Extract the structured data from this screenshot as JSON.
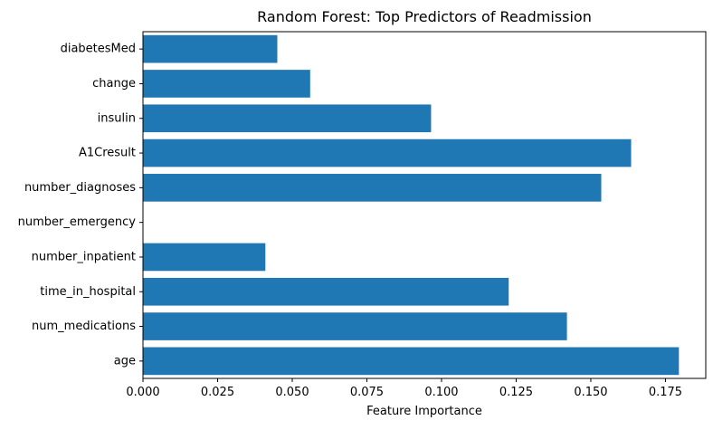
{
  "chart_data": {
    "type": "bar",
    "orientation": "horizontal",
    "title": "Random Forest: Top Predictors of Readmission",
    "xlabel": "Feature Importance",
    "ylabel": "",
    "categories": [
      "age",
      "num_medications",
      "time_in_hospital",
      "number_inpatient",
      "number_emergency",
      "number_diagnoses",
      "A1Cresult",
      "insulin",
      "change",
      "diabetesMed"
    ],
    "values": [
      0.1795,
      0.142,
      0.1225,
      0.041,
      0.0,
      0.1535,
      0.1635,
      0.0965,
      0.056,
      0.045
    ],
    "xlim": [
      0,
      0.1885
    ],
    "xticks": [
      0.0,
      0.025,
      0.05,
      0.075,
      0.1,
      0.125,
      0.15,
      0.175
    ],
    "xtick_labels": [
      "0.000",
      "0.025",
      "0.050",
      "0.075",
      "0.100",
      "0.125",
      "0.150",
      "0.175"
    ],
    "bar_color": "#1f77b4",
    "grid": false,
    "legend": "none"
  }
}
